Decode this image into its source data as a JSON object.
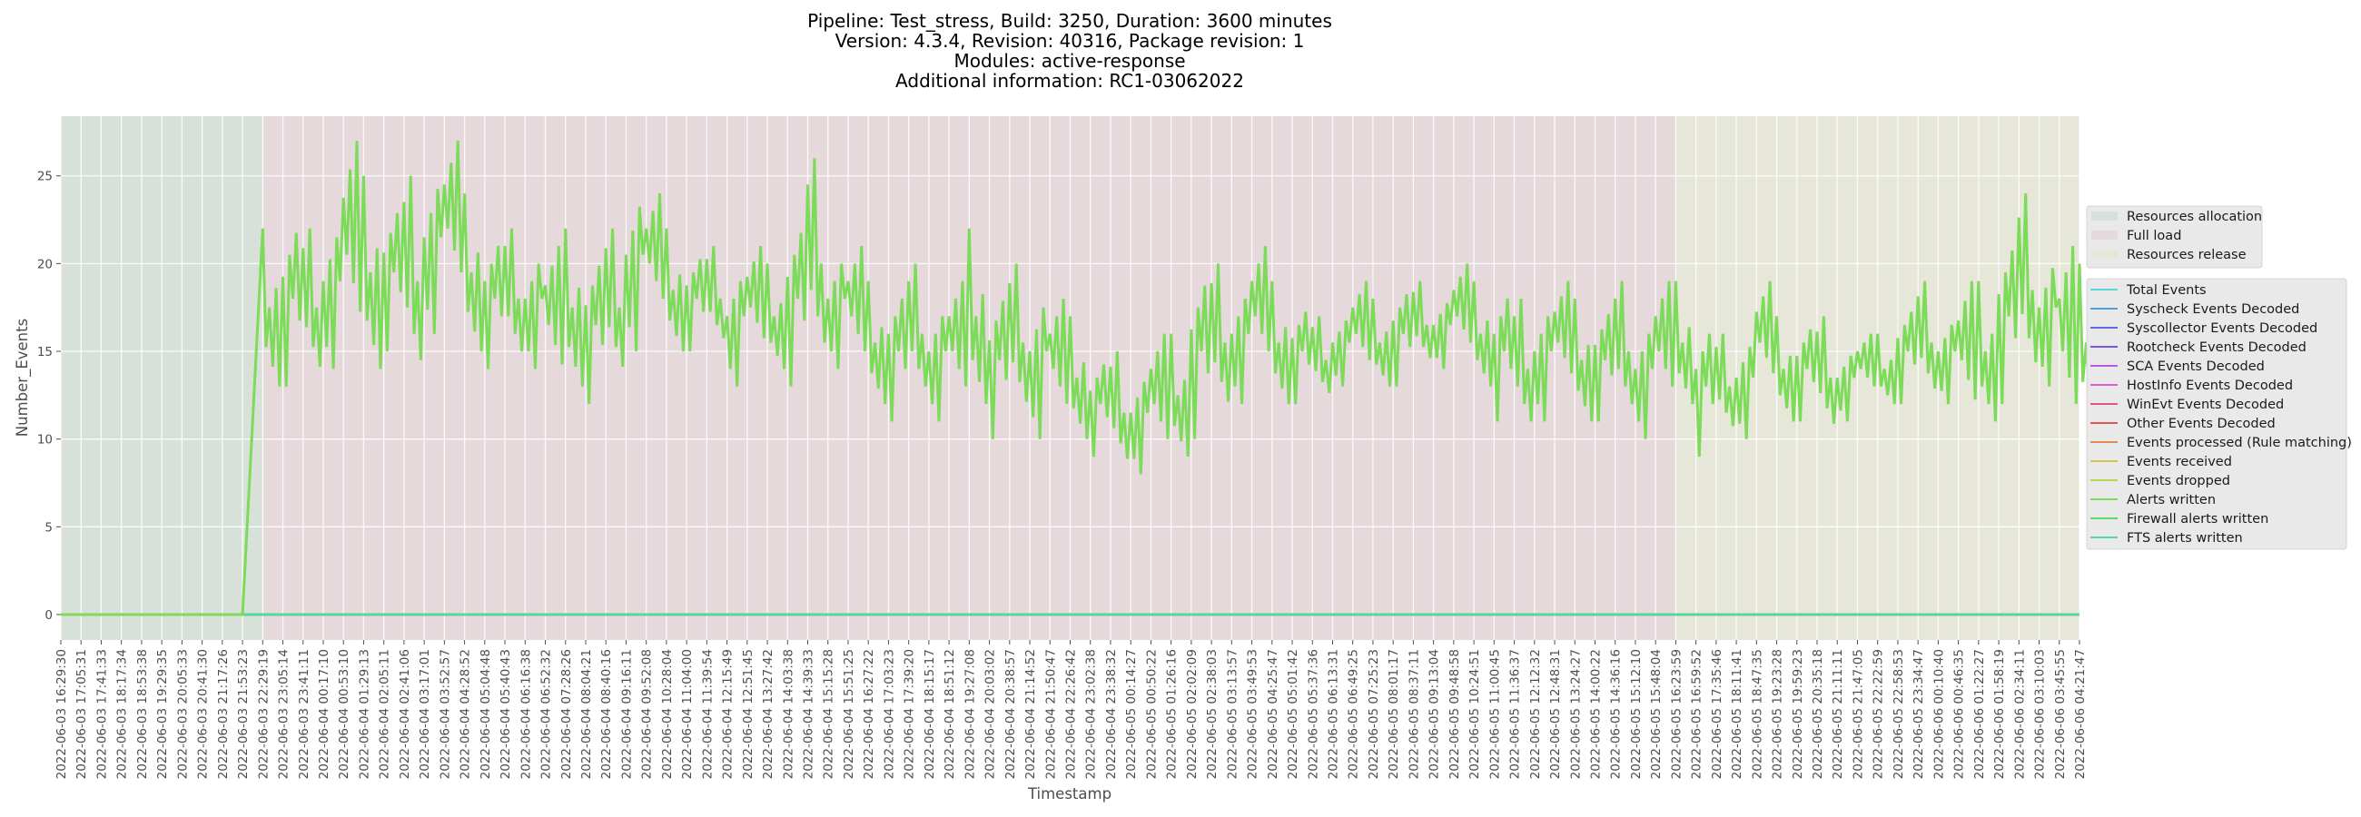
{
  "chart_data": {
    "type": "line",
    "title": [
      "Pipeline: Test_stress, Build: 3250, Duration: 3600 minutes",
      "Version: 4.3.4, Revision: 40316, Package revision: 1",
      "Modules: active-response",
      "Additional information: RC1-03062022"
    ],
    "xlabel": "Timestamp",
    "ylabel": "Number_Events",
    "ylim": [
      -1.45,
      28.4
    ],
    "yticks": [
      0,
      5,
      10,
      15,
      20,
      25
    ],
    "grid": true,
    "x": [
      "2022-06-03 16:29:30",
      "2022-06-03 17:05:31",
      "2022-06-03 17:41:33",
      "2022-06-03 18:17:34",
      "2022-06-03 18:53:38",
      "2022-06-03 19:29:35",
      "2022-06-03 20:05:33",
      "2022-06-03 20:41:30",
      "2022-06-03 21:17:26",
      "2022-06-03 21:53:23",
      "2022-06-03 22:29:19",
      "2022-06-03 23:05:14",
      "2022-06-03 23:41:11",
      "2022-06-04 00:17:10",
      "2022-06-04 00:53:10",
      "2022-06-04 01:29:13",
      "2022-06-04 02:05:11",
      "2022-06-04 02:41:06",
      "2022-06-04 03:17:01",
      "2022-06-04 03:52:57",
      "2022-06-04 04:28:52",
      "2022-06-04 05:04:48",
      "2022-06-04 05:40:43",
      "2022-06-04 06:16:38",
      "2022-06-04 06:52:32",
      "2022-06-04 07:28:26",
      "2022-06-04 08:04:21",
      "2022-06-04 08:40:16",
      "2022-06-04 09:16:11",
      "2022-06-04 09:52:08",
      "2022-06-04 10:28:04",
      "2022-06-04 11:04:00",
      "2022-06-04 11:39:54",
      "2022-06-04 12:15:49",
      "2022-06-04 12:51:45",
      "2022-06-04 13:27:42",
      "2022-06-04 14:03:38",
      "2022-06-04 14:39:33",
      "2022-06-04 15:15:28",
      "2022-06-04 15:51:25",
      "2022-06-04 16:27:22",
      "2022-06-04 17:03:23",
      "2022-06-04 17:39:20",
      "2022-06-04 18:15:17",
      "2022-06-04 18:51:12",
      "2022-06-04 19:27:08",
      "2022-06-04 20:03:02",
      "2022-06-04 20:38:57",
      "2022-06-04 21:14:52",
      "2022-06-04 21:50:47",
      "2022-06-04 22:26:42",
      "2022-06-04 23:02:38",
      "2022-06-04 23:38:32",
      "2022-06-05 00:14:27",
      "2022-06-05 00:50:22",
      "2022-06-05 01:26:16",
      "2022-06-05 02:02:09",
      "2022-06-05 02:38:03",
      "2022-06-05 03:13:57",
      "2022-06-05 03:49:53",
      "2022-06-05 04:25:47",
      "2022-06-05 05:01:42",
      "2022-06-05 05:37:36",
      "2022-06-05 06:13:31",
      "2022-06-05 06:49:25",
      "2022-06-05 07:25:23",
      "2022-06-05 08:01:17",
      "2022-06-05 08:37:11",
      "2022-06-05 09:13:04",
      "2022-06-05 09:48:58",
      "2022-06-05 10:24:51",
      "2022-06-05 11:00:45",
      "2022-06-05 11:36:37",
      "2022-06-05 12:12:32",
      "2022-06-05 12:48:31",
      "2022-06-05 13:24:27",
      "2022-06-05 14:00:22",
      "2022-06-05 14:36:16",
      "2022-06-05 15:12:10",
      "2022-06-05 15:48:04",
      "2022-06-05 16:23:59",
      "2022-06-05 16:59:52",
      "2022-06-05 17:35:46",
      "2022-06-05 18:11:41",
      "2022-06-05 18:47:35",
      "2022-06-05 19:23:28",
      "2022-06-05 19:59:23",
      "2022-06-05 20:35:18",
      "2022-06-05 21:11:11",
      "2022-06-05 21:47:05",
      "2022-06-05 22:22:59",
      "2022-06-05 22:58:53",
      "2022-06-05 23:34:47",
      "2022-06-06 00:10:40",
      "2022-06-06 00:46:35",
      "2022-06-06 01:22:27",
      "2022-06-06 01:58:19",
      "2022-06-06 02:34:11",
      "2022-06-06 03:10:03",
      "2022-06-06 03:45:55",
      "2022-06-06 04:21:47"
    ],
    "phases": [
      {
        "name": "Resources allocation",
        "start": "2022-06-03 16:29:30",
        "end": "2022-06-03 22:29:19",
        "color": "#d8e0da"
      },
      {
        "name": "Full load",
        "start": "2022-06-03 22:29:19",
        "end": "2022-06-05 16:23:59",
        "color": "#e6d9db"
      },
      {
        "name": "Resources release",
        "start": "2022-06-05 16:23:59",
        "end": "2022-06-06 04:21:47",
        "color": "#e6e6d9"
      }
    ],
    "series": [
      {
        "name": "Total Events",
        "color": "#5ad7db",
        "values": "zero"
      },
      {
        "name": "Syscheck Events Decoded",
        "color": "#4c9ee0",
        "values": "zero"
      },
      {
        "name": "Syscollector Events Decoded",
        "color": "#5a6ee0",
        "values": "zero"
      },
      {
        "name": "Rootcheck Events Decoded",
        "color": "#7a55e0",
        "values": "zero"
      },
      {
        "name": "SCA Events Decoded",
        "color": "#b55ce0",
        "values": "zero"
      },
      {
        "name": "HostInfo Events Decoded",
        "color": "#e05ccf",
        "values": "zero"
      },
      {
        "name": "WinEvt Events Decoded",
        "color": "#e0568a",
        "values": "zero"
      },
      {
        "name": "Other Events Decoded",
        "color": "#e05656",
        "values": "zero"
      },
      {
        "name": "Events processed (Rule matching)",
        "color": "#e08a56",
        "values": "zero"
      },
      {
        "name": "Events received",
        "color": "#dcc04a",
        "values": "zero"
      },
      {
        "name": "Events dropped",
        "color": "#b5d84e",
        "values": "zero"
      },
      {
        "name": "Alerts written",
        "color": "#7ddb5a",
        "max": [
          0,
          0,
          0,
          0,
          0,
          0,
          0,
          0,
          0,
          0,
          22,
          23,
          22,
          24,
          27,
          25,
          24,
          25,
          27,
          27,
          24,
          22,
          22,
          22,
          21,
          22,
          21,
          22,
          26,
          24,
          22,
          21,
          21,
          21,
          21,
          20,
          23,
          26,
          22,
          21,
          19,
          19,
          20,
          19,
          19,
          22,
          19,
          20,
          20,
          18,
          17,
          15,
          15,
          15,
          16,
          16,
          20,
          20,
          20,
          21,
          19,
          18,
          17,
          18,
          19,
          18,
          19,
          19,
          19,
          20,
          19,
          19,
          18,
          19,
          19,
          18,
          18,
          19,
          18,
          19,
          19,
          17,
          16,
          17,
          19,
          17,
          17,
          17,
          16,
          16,
          16,
          18,
          19,
          18,
          19,
          19,
          22,
          24,
          22,
          21,
          20
        ],
        "min": [
          0,
          0,
          0,
          0,
          0,
          0,
          0,
          0,
          0,
          0,
          13,
          13,
          13,
          14,
          14,
          14,
          15,
          13,
          16,
          17,
          15,
          14,
          14,
          14,
          12,
          13,
          12,
          13,
          15,
          16,
          15,
          15,
          15,
          13,
          14,
          14,
          13,
          14,
          14,
          13,
          12,
          11,
          12,
          11,
          11,
          12,
          10,
          11,
          10,
          10,
          10,
          9,
          8,
          8,
          8,
          9,
          10,
          11,
          12,
          13,
          12,
          12,
          12,
          13,
          13,
          13,
          13,
          14,
          14,
          14,
          13,
          11,
          10,
          11,
          12,
          11,
          11,
          11,
          10,
          11,
          12,
          9,
          10,
          10,
          12,
          11,
          11,
          10,
          11,
          12,
          12,
          12,
          12,
          12,
          10,
          11,
          12,
          13,
          13,
          9,
          11
        ]
      },
      {
        "name": "Firewall alerts written",
        "color": "#55dc6e",
        "values": "zero"
      },
      {
        "name": "FTS alerts written",
        "color": "#4fd9a6",
        "values": "zero"
      }
    ],
    "legend_placement": "right"
  }
}
